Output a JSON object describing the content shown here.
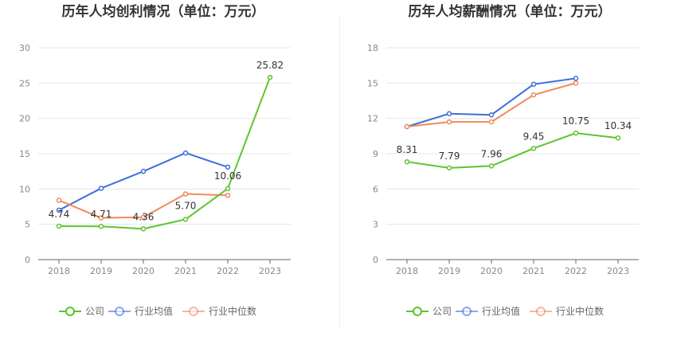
{
  "chart_data": [
    {
      "type": "line",
      "title": "历年人均创利情况（单位：万元）",
      "categories": [
        "2018",
        "2019",
        "2020",
        "2021",
        "2022",
        "2023"
      ],
      "ylim": [
        0,
        30
      ],
      "yticks": [
        "0",
        "5",
        "10",
        "15",
        "20",
        "25",
        "30"
      ],
      "series": [
        {
          "name": "公司",
          "color": "#5cc52e",
          "values": [
            4.74,
            4.71,
            4.36,
            5.7,
            10.06,
            25.82
          ],
          "labels": [
            "4.74",
            "4.71",
            "4.36",
            "5.70",
            "10.06",
            "25.82"
          ]
        },
        {
          "name": "行业均值",
          "color": "#3d6fd9",
          "values": [
            7.0,
            10.1,
            12.5,
            15.1,
            13.1,
            null
          ]
        },
        {
          "name": "行业中位数",
          "color": "#f08a5d",
          "values": [
            8.4,
            5.9,
            6.0,
            9.3,
            9.1,
            null
          ]
        }
      ],
      "legend": [
        "公司",
        "行业均值",
        "行业中位数"
      ],
      "legend_position": "bottom"
    },
    {
      "type": "line",
      "title": "历年人均薪酬情况（单位：万元）",
      "categories": [
        "2018",
        "2019",
        "2020",
        "2021",
        "2022",
        "2023"
      ],
      "ylim": [
        0,
        18
      ],
      "yticks": [
        "0",
        "3",
        "6",
        "9",
        "12",
        "15",
        "18"
      ],
      "series": [
        {
          "name": "公司",
          "color": "#5cc52e",
          "values": [
            8.31,
            7.79,
            7.96,
            9.45,
            10.75,
            10.34
          ],
          "labels": [
            "8.31",
            "7.79",
            "7.96",
            "9.45",
            "10.75",
            "10.34"
          ]
        },
        {
          "name": "行业均值",
          "color": "#3d6fd9",
          "values": [
            11.3,
            12.4,
            12.3,
            14.9,
            15.4,
            null
          ]
        },
        {
          "name": "行业中位数",
          "color": "#f08a5d",
          "values": [
            11.3,
            11.7,
            11.7,
            14.0,
            15.0,
            null
          ]
        }
      ],
      "legend": [
        "公司",
        "行业均值",
        "行业中位数"
      ],
      "legend_position": "bottom"
    }
  ]
}
